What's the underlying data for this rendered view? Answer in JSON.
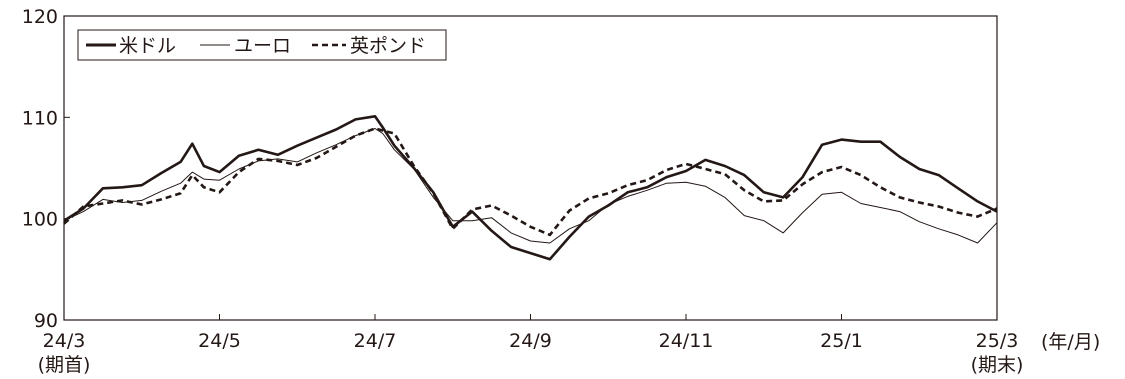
{
  "chart_data": {
    "type": "line",
    "unit_label": "(年/月)",
    "ylim": [
      90,
      120
    ],
    "yticks": [
      "90",
      "100",
      "110",
      "120"
    ],
    "xlim": [
      0,
      24
    ],
    "xticks": [
      {
        "x": 0,
        "label": "24/3",
        "sub": "(期首)"
      },
      {
        "x": 4,
        "label": "24/5",
        "sub": ""
      },
      {
        "x": 8,
        "label": "24/7",
        "sub": ""
      },
      {
        "x": 12,
        "label": "24/9",
        "sub": ""
      },
      {
        "x": 16,
        "label": "24/11",
        "sub": ""
      },
      {
        "x": 20,
        "label": "25/1",
        "sub": ""
      },
      {
        "x": 24,
        "label": "25/3",
        "sub": "(期末)"
      }
    ],
    "legend_position": "top-left",
    "grid": false,
    "series": [
      {
        "name": "米ドル",
        "style": "thick",
        "color": "#231815",
        "points": [
          [
            0,
            99.8
          ],
          [
            0.5,
            101.0
          ],
          [
            1.0,
            103.0
          ],
          [
            1.5,
            103.1
          ],
          [
            2.0,
            103.3
          ],
          [
            2.5,
            104.5
          ],
          [
            3.0,
            105.6
          ],
          [
            3.3,
            107.4
          ],
          [
            3.6,
            105.2
          ],
          [
            4.0,
            104.6
          ],
          [
            4.5,
            106.2
          ],
          [
            5.0,
            106.8
          ],
          [
            5.5,
            106.3
          ],
          [
            6.0,
            107.2
          ],
          [
            6.5,
            108.0
          ],
          [
            7.0,
            108.8
          ],
          [
            7.5,
            109.8
          ],
          [
            8.0,
            110.1
          ],
          [
            8.2,
            109.0
          ],
          [
            8.5,
            107.2
          ],
          [
            9.0,
            105.0
          ],
          [
            9.5,
            102.6
          ],
          [
            10.0,
            99.2
          ],
          [
            10.5,
            100.7
          ],
          [
            11.0,
            98.8
          ],
          [
            11.5,
            97.2
          ],
          [
            12.0,
            96.6
          ],
          [
            12.5,
            96.0
          ],
          [
            13.0,
            98.2
          ],
          [
            13.5,
            100.2
          ],
          [
            14.0,
            101.3
          ],
          [
            14.5,
            102.6
          ],
          [
            15.0,
            103.1
          ],
          [
            15.5,
            104.1
          ],
          [
            16.0,
            104.7
          ],
          [
            16.5,
            105.8
          ],
          [
            17.0,
            105.2
          ],
          [
            17.5,
            104.3
          ],
          [
            18.0,
            102.6
          ],
          [
            18.5,
            102.1
          ],
          [
            19.0,
            104.1
          ],
          [
            19.5,
            107.3
          ],
          [
            20.0,
            107.8
          ],
          [
            20.5,
            107.6
          ],
          [
            21.0,
            107.6
          ],
          [
            21.5,
            106.1
          ],
          [
            22.0,
            104.9
          ],
          [
            22.5,
            104.3
          ],
          [
            23.0,
            103.0
          ],
          [
            23.5,
            101.7
          ],
          [
            24.0,
            100.7
          ]
        ]
      },
      {
        "name": "ユーロ",
        "style": "thin",
        "color": "#231815",
        "points": [
          [
            0,
            99.8
          ],
          [
            0.5,
            100.7
          ],
          [
            1.0,
            101.9
          ],
          [
            1.5,
            101.6
          ],
          [
            2.0,
            101.8
          ],
          [
            2.5,
            102.7
          ],
          [
            3.0,
            103.5
          ],
          [
            3.3,
            104.6
          ],
          [
            3.6,
            103.9
          ],
          [
            4.0,
            103.8
          ],
          [
            4.5,
            104.9
          ],
          [
            5.0,
            105.7
          ],
          [
            5.5,
            105.9
          ],
          [
            6.0,
            105.6
          ],
          [
            6.5,
            106.5
          ],
          [
            7.0,
            107.3
          ],
          [
            7.5,
            108.2
          ],
          [
            8.0,
            108.9
          ],
          [
            8.2,
            108.4
          ],
          [
            8.5,
            106.8
          ],
          [
            9.0,
            104.9
          ],
          [
            9.5,
            102.1
          ],
          [
            10.0,
            99.8
          ],
          [
            10.5,
            99.8
          ],
          [
            11.0,
            100.1
          ],
          [
            11.5,
            98.6
          ],
          [
            12.0,
            97.8
          ],
          [
            12.5,
            97.6
          ],
          [
            13.0,
            99.0
          ],
          [
            13.5,
            99.8
          ],
          [
            14.0,
            101.4
          ],
          [
            14.5,
            102.2
          ],
          [
            15.0,
            102.8
          ],
          [
            15.5,
            103.5
          ],
          [
            16.0,
            103.6
          ],
          [
            16.5,
            103.2
          ],
          [
            17.0,
            102.1
          ],
          [
            17.5,
            100.3
          ],
          [
            18.0,
            99.8
          ],
          [
            18.5,
            98.6
          ],
          [
            19.0,
            100.6
          ],
          [
            19.5,
            102.4
          ],
          [
            20.0,
            102.6
          ],
          [
            20.5,
            101.5
          ],
          [
            21.0,
            101.1
          ],
          [
            21.5,
            100.7
          ],
          [
            22.0,
            99.7
          ],
          [
            22.5,
            99.0
          ],
          [
            23.0,
            98.4
          ],
          [
            23.5,
            97.6
          ],
          [
            24.0,
            99.6
          ]
        ]
      },
      {
        "name": "英ポンド",
        "style": "dashed",
        "color": "#231815",
        "points": [
          [
            0,
            99.5
          ],
          [
            0.5,
            101.2
          ],
          [
            1.0,
            101.5
          ],
          [
            1.5,
            101.8
          ],
          [
            2.0,
            101.4
          ],
          [
            2.5,
            101.9
          ],
          [
            3.0,
            102.5
          ],
          [
            3.3,
            104.3
          ],
          [
            3.6,
            103.1
          ],
          [
            4.0,
            102.6
          ],
          [
            4.5,
            104.6
          ],
          [
            5.0,
            105.9
          ],
          [
            5.5,
            105.7
          ],
          [
            6.0,
            105.3
          ],
          [
            6.5,
            106.0
          ],
          [
            7.0,
            107.1
          ],
          [
            7.5,
            108.2
          ],
          [
            8.0,
            108.9
          ],
          [
            8.2,
            108.7
          ],
          [
            8.5,
            108.4
          ],
          [
            9.0,
            105.2
          ],
          [
            9.5,
            102.5
          ],
          [
            10.0,
            99.0
          ],
          [
            10.5,
            100.9
          ],
          [
            11.0,
            101.3
          ],
          [
            11.5,
            100.3
          ],
          [
            12.0,
            99.2
          ],
          [
            12.5,
            98.4
          ],
          [
            13.0,
            100.8
          ],
          [
            13.5,
            102.0
          ],
          [
            14.0,
            102.5
          ],
          [
            14.5,
            103.3
          ],
          [
            15.0,
            103.8
          ],
          [
            15.5,
            104.8
          ],
          [
            16.0,
            105.4
          ],
          [
            16.5,
            104.9
          ],
          [
            17.0,
            104.4
          ],
          [
            17.5,
            102.8
          ],
          [
            18.0,
            101.7
          ],
          [
            18.5,
            101.8
          ],
          [
            19.0,
            103.4
          ],
          [
            19.5,
            104.6
          ],
          [
            20.0,
            105.1
          ],
          [
            20.5,
            104.3
          ],
          [
            21.0,
            103.1
          ],
          [
            21.5,
            102.1
          ],
          [
            22.0,
            101.6
          ],
          [
            22.5,
            101.2
          ],
          [
            23.0,
            100.6
          ],
          [
            23.5,
            100.2
          ],
          [
            24.0,
            101.0
          ]
        ]
      }
    ]
  }
}
